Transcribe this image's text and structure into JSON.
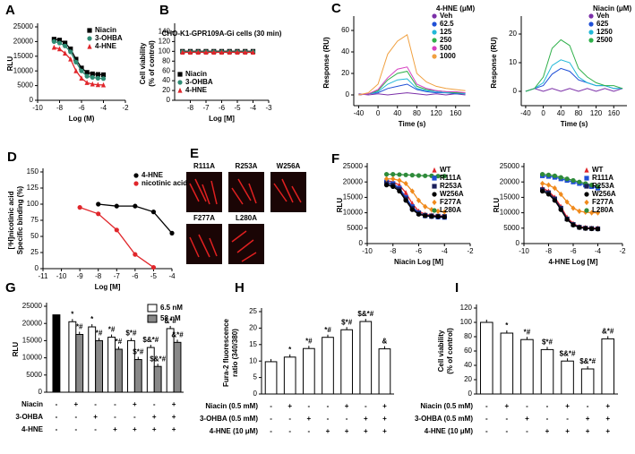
{
  "chart_data": [
    {
      "type": "line",
      "panel": "A",
      "xlabel": "Log (M)",
      "ylabel": "RLU",
      "legend": "upper right",
      "xlim": [
        -10,
        -2
      ],
      "xticks": [
        -10,
        -8,
        -6,
        -4,
        -2
      ],
      "ylim": [
        0,
        25000
      ],
      "yticks": [
        0,
        5000,
        10000,
        15000,
        20000,
        25000
      ],
      "x": [
        -8.5,
        -8,
        -7.5,
        -7,
        -6.5,
        -6,
        -5.5,
        -5,
        -4.5,
        -4
      ],
      "series": [
        {
          "name": "Niacin",
          "color": "#000000",
          "marker": "square",
          "values": [
            20800,
            20500,
            19500,
            17500,
            14000,
            11000,
            9500,
            9000,
            8800,
            8700
          ]
        },
        {
          "name": "3-OHBA",
          "color": "#2e8b73",
          "marker": "circle",
          "values": [
            20000,
            19500,
            18500,
            16500,
            13000,
            10000,
            8200,
            7800,
            7500,
            7400
          ]
        },
        {
          "name": "4-HNE",
          "color": "#e0262b",
          "marker": "triangle",
          "values": [
            18000,
            17500,
            16000,
            14000,
            10000,
            7500,
            6000,
            5500,
            5300,
            5200
          ]
        }
      ]
    },
    {
      "type": "line",
      "panel": "B",
      "title": "CHO-K1-GPR109A-Gi cells (30 min)",
      "xlabel": "Log [M]",
      "ylabel": [
        "Cell viability",
        "(% of control)"
      ],
      "legend": "lower left",
      "xlim": [
        -9,
        -3
      ],
      "xticks": [
        -8,
        -7,
        -6,
        -5,
        -4,
        -3
      ],
      "ylim": [
        0,
        150
      ],
      "yticks": [
        0,
        20,
        40,
        60,
        80,
        100,
        120,
        140
      ],
      "x": [
        -8.5,
        -8,
        -7.5,
        -7,
        -6.5,
        -6,
        -5.5,
        -5,
        -4.5,
        -4
      ],
      "series": [
        {
          "name": "Niacin",
          "color": "#000000",
          "marker": "square",
          "values": [
            100,
            100,
            100,
            100,
            100,
            100,
            100,
            100,
            100,
            100
          ]
        },
        {
          "name": "3-OHBA",
          "color": "#2e8b73",
          "marker": "circle",
          "values": [
            99,
            99,
            99,
            99,
            99,
            99,
            99,
            99,
            99,
            99
          ]
        },
        {
          "name": "4-HNE",
          "color": "#e0262b",
          "marker": "triangle",
          "values": [
            98,
            98,
            98,
            98,
            98,
            98,
            98,
            98,
            98,
            98
          ]
        }
      ]
    },
    {
      "type": "line",
      "panel": "C",
      "xlabel": "Time (s)",
      "ylabel": "Response (RU)",
      "legend": "upper right",
      "legend_title": "4-HNE (μM)",
      "xlim": [
        -50,
        190
      ],
      "xticks": [
        -40,
        0,
        40,
        80,
        120,
        160
      ],
      "ylim": [
        -10,
        70
      ],
      "yticks": [
        0,
        20,
        40,
        60
      ],
      "x": [
        -40,
        -20,
        0,
        20,
        40,
        60,
        80,
        100,
        120,
        140,
        160,
        180
      ],
      "series": [
        {
          "name": "Veh",
          "color": "#7b2fa8",
          "values": [
            1,
            0,
            1,
            0,
            1,
            2,
            1,
            0,
            1,
            0,
            1,
            0
          ]
        },
        {
          "name": "62.5",
          "color": "#1f4fd6",
          "values": [
            0,
            1,
            2,
            6,
            8,
            10,
            5,
            3,
            2,
            2,
            1,
            1
          ]
        },
        {
          "name": "125",
          "color": "#22b8d8",
          "values": [
            0,
            1,
            3,
            10,
            14,
            15,
            6,
            4,
            3,
            2,
            2,
            1
          ]
        },
        {
          "name": "250",
          "color": "#2fb04a",
          "values": [
            0,
            1,
            4,
            14,
            20,
            22,
            8,
            5,
            4,
            3,
            2,
            2
          ]
        },
        {
          "name": "500",
          "color": "#d63fc0",
          "values": [
            0,
            1,
            5,
            16,
            24,
            26,
            10,
            6,
            4,
            3,
            3,
            2
          ]
        },
        {
          "name": "1000",
          "color": "#f0a040",
          "values": [
            0,
            2,
            10,
            38,
            50,
            56,
            20,
            12,
            8,
            6,
            5,
            4
          ]
        }
      ]
    },
    {
      "type": "line",
      "xlabel": "Time (s)",
      "ylabel": "Response (RU)",
      "legend": "upper right",
      "legend_title": "Niacin (μM)",
      "xlim": [
        -50,
        190
      ],
      "xticks": [
        -40,
        0,
        40,
        80,
        120,
        160
      ],
      "ylim": [
        -5,
        25
      ],
      "yticks": [
        0,
        10,
        20
      ],
      "x": [
        -40,
        -20,
        0,
        20,
        40,
        60,
        80,
        100,
        120,
        140,
        160,
        180
      ],
      "series": [
        {
          "name": "Veh",
          "color": "#7b2fa8",
          "values": [
            0,
            1,
            0,
            1,
            0,
            1,
            0,
            1,
            0,
            1,
            0,
            1
          ]
        },
        {
          "name": "625",
          "color": "#1f4fd6",
          "values": [
            0,
            1,
            2,
            6,
            8,
            7,
            4,
            3,
            2,
            2,
            1,
            1
          ]
        },
        {
          "name": "1250",
          "color": "#22b8d8",
          "values": [
            0,
            1,
            3,
            9,
            11,
            10,
            5,
            3,
            2,
            2,
            1,
            1
          ]
        },
        {
          "name": "2500",
          "color": "#2fb04a",
          "values": [
            0,
            1,
            5,
            15,
            18,
            16,
            8,
            5,
            3,
            2,
            2,
            1
          ]
        }
      ]
    },
    {
      "type": "line",
      "panel": "D",
      "xlabel": "Log [M]",
      "ylabel": [
        "[³H]nicotinic acid",
        "Specific binding (%)"
      ],
      "legend": "upper right",
      "xlim": [
        -11,
        -4
      ],
      "xticks": [
        -11,
        -10,
        -9,
        -8,
        -7,
        -6,
        -5,
        -4
      ],
      "ylim": [
        0,
        150
      ],
      "yticks": [
        0,
        25,
        50,
        75,
        100,
        125,
        150
      ],
      "series": [
        {
          "name": "4-HNE",
          "color": "#000000",
          "marker": "circle",
          "x": [
            -8,
            -7,
            -6,
            -5,
            -4
          ],
          "values": [
            100,
            97,
            97,
            88,
            55
          ]
        },
        {
          "name": "nicotinic acid",
          "color": "#e0262b",
          "marker": "circle",
          "x": [
            -9,
            -8,
            -7,
            -6,
            -5
          ],
          "values": [
            95,
            85,
            60,
            22,
            2
          ]
        }
      ]
    },
    {
      "type": "line",
      "panel": "F",
      "xlabel": "Niacin Log [M]",
      "ylabel": "RLU",
      "legend": "upper right",
      "xlim": [
        -10,
        -2
      ],
      "xticks": [
        -10,
        -8,
        -6,
        -4,
        -2
      ],
      "ylim": [
        0,
        25000
      ],
      "yticks": [
        0,
        5000,
        10000,
        15000,
        20000,
        25000
      ],
      "x": [
        -8.5,
        -8,
        -7.5,
        -7,
        -6.5,
        -6,
        -5.5,
        -5,
        -4.5,
        -4
      ],
      "series": [
        {
          "name": "WT",
          "color": "#e0262b",
          "marker": "triangle",
          "values": [
            20500,
            20000,
            19000,
            16500,
            13000,
            10500,
            9500,
            9200,
            9000,
            9000
          ]
        },
        {
          "name": "R111A",
          "color": "#1f4fd6",
          "marker": "square",
          "values": [
            20000,
            19500,
            18000,
            15000,
            12000,
            10000,
            9000,
            8800,
            8600,
            8500
          ]
        },
        {
          "name": "R253A",
          "color": "#1a1f5a",
          "marker": "square",
          "values": [
            19500,
            19000,
            17500,
            14500,
            11500,
            9800,
            9200,
            9000,
            8900,
            8800
          ]
        },
        {
          "name": "W256A",
          "color": "#000000",
          "marker": "circle",
          "values": [
            19000,
            18500,
            17000,
            14000,
            11000,
            9500,
            9000,
            8800,
            8700,
            8600
          ]
        },
        {
          "name": "F277A",
          "color": "#f08a1c",
          "marker": "diamond",
          "values": [
            21000,
            21000,
            20500,
            19500,
            17000,
            14000,
            12000,
            11000,
            10500,
            10300
          ]
        },
        {
          "name": "L280A",
          "color": "#2e8b3a",
          "marker": "circle",
          "values": [
            22500,
            22500,
            22400,
            22300,
            22200,
            22100,
            22000,
            22000,
            21900,
            21900
          ]
        }
      ]
    },
    {
      "type": "line",
      "xlabel": "4-HNE Log [M]",
      "ylabel": "RLU",
      "legend": "upper right",
      "xlim": [
        -10,
        -2
      ],
      "xticks": [
        -10,
        -8,
        -6,
        -4,
        -2
      ],
      "ylim": [
        0,
        25000
      ],
      "yticks": [
        0,
        5000,
        10000,
        15000,
        20000,
        25000
      ],
      "x": [
        -8.5,
        -8,
        -7.5,
        -7,
        -6.5,
        -6,
        -5.5,
        -5,
        -4.5,
        -4
      ],
      "series": [
        {
          "name": "WT",
          "color": "#e0262b",
          "marker": "triangle",
          "values": [
            18000,
            17000,
            15000,
            12000,
            8500,
            6500,
            5500,
            5200,
            5000,
            5000
          ]
        },
        {
          "name": "R111A",
          "color": "#1f4fd6",
          "marker": "square",
          "values": [
            22000,
            21800,
            21500,
            21000,
            20500,
            20000,
            19500,
            19000,
            18500,
            18000
          ]
        },
        {
          "name": "R253A",
          "color": "#1a1f5a",
          "marker": "square",
          "values": [
            17500,
            16500,
            14500,
            11500,
            8000,
            6200,
            5300,
            5000,
            4900,
            4800
          ]
        },
        {
          "name": "W256A",
          "color": "#000000",
          "marker": "circle",
          "values": [
            17000,
            16000,
            14000,
            11000,
            7800,
            6000,
            5200,
            4900,
            4800,
            4700
          ]
        },
        {
          "name": "F277A",
          "color": "#f08a1c",
          "marker": "diamond",
          "values": [
            19500,
            19000,
            18000,
            16000,
            13500,
            11500,
            10500,
            10200,
            10000,
            10000
          ]
        },
        {
          "name": "L280A",
          "color": "#2e8b3a",
          "marker": "circle",
          "values": [
            22500,
            22300,
            22000,
            21500,
            21000,
            20500,
            20000,
            19500,
            19000,
            18500
          ]
        }
      ]
    },
    {
      "type": "bar",
      "panel": "G",
      "ylabel": "RLU",
      "legend": "upper right",
      "ylim": [
        0,
        25000
      ],
      "yticks": [
        0,
        5000,
        10000,
        15000,
        20000,
        25000
      ],
      "baseline_bar": {
        "value": 22500,
        "color": "#000000"
      },
      "series": [
        {
          "name": "6.5 nM",
          "color": "#ffffff",
          "values": [
            null,
            20500,
            19000,
            16000,
            15000,
            13000,
            18500
          ],
          "annotations": [
            null,
            "*",
            "*",
            "*#",
            "$*#",
            "$&*#",
            "&*#"
          ]
        },
        {
          "name": "58 nM",
          "color": "#888888",
          "values": [
            null,
            16800,
            15000,
            12500,
            9500,
            7500,
            14500
          ],
          "annotations": [
            null,
            "*#",
            "*#",
            "*#",
            "$*#",
            "$&*#",
            "&*#"
          ]
        }
      ],
      "treatments": [
        {
          "label": "Niacin",
          "signs": [
            "-",
            "+",
            "-",
            "-",
            "+",
            "-",
            "+"
          ]
        },
        {
          "label": "3-OHBA",
          "signs": [
            "-",
            "-",
            "+",
            "-",
            "-",
            "+",
            "+"
          ]
        },
        {
          "label": "4-HNE",
          "signs": [
            "-",
            "-",
            "-",
            "+",
            "+",
            "+",
            "+"
          ]
        }
      ]
    },
    {
      "type": "bar",
      "panel": "H",
      "ylabel": [
        "Fura-2 fluorescence",
        "ratio (340/380)"
      ],
      "ylim": [
        0,
        25
      ],
      "yticks": [
        0,
        5,
        10,
        15,
        20,
        25
      ],
      "series": [
        {
          "color": "#ffffff",
          "values": [
            9.8,
            11.2,
            13.8,
            17.2,
            19.5,
            22,
            13.7
          ],
          "annotations": [
            null,
            "*",
            "*#",
            "*#",
            "$*#",
            "$&*#",
            "&"
          ]
        }
      ],
      "treatments": [
        {
          "label": "Niacin (0.5 mM)",
          "signs": [
            "-",
            "+",
            "-",
            "-",
            "+",
            "-",
            "+"
          ]
        },
        {
          "label": "3-OHBA (0.5 mM)",
          "signs": [
            "-",
            "-",
            "+",
            "-",
            "-",
            "+",
            "+"
          ]
        },
        {
          "label": "4-HNE (10 μM)",
          "signs": [
            "-",
            "-",
            "-",
            "+",
            "+",
            "+",
            "+"
          ]
        }
      ]
    },
    {
      "type": "bar",
      "panel": "I",
      "ylabel": [
        "Cell viability",
        "(% of control)"
      ],
      "ylim": [
        0,
        120
      ],
      "yticks": [
        0,
        20,
        40,
        60,
        80,
        100,
        120
      ],
      "series": [
        {
          "color": "#ffffff",
          "values": [
            100,
            85,
            76,
            62,
            46,
            35,
            77
          ],
          "annotations": [
            null,
            "*",
            "*#",
            "$*#",
            "$&*#",
            "$&*#",
            "&*#"
          ]
        }
      ],
      "treatments": [
        {
          "label": "Niacin (0.5 mM)",
          "signs": [
            "-",
            "+",
            "-",
            "-",
            "+",
            "-",
            "+"
          ]
        },
        {
          "label": "3-OHBA (0.5 mM)",
          "signs": [
            "-",
            "-",
            "+",
            "-",
            "-",
            "+",
            "+"
          ]
        },
        {
          "label": "4-HNE (10 μM)",
          "signs": [
            "-",
            "-",
            "-",
            "+",
            "+",
            "+",
            "+"
          ]
        }
      ]
    }
  ],
  "panel_e": {
    "panel": "E",
    "labels": [
      "R111A",
      "R253A",
      "W256A",
      "F277A",
      "L280A"
    ]
  }
}
